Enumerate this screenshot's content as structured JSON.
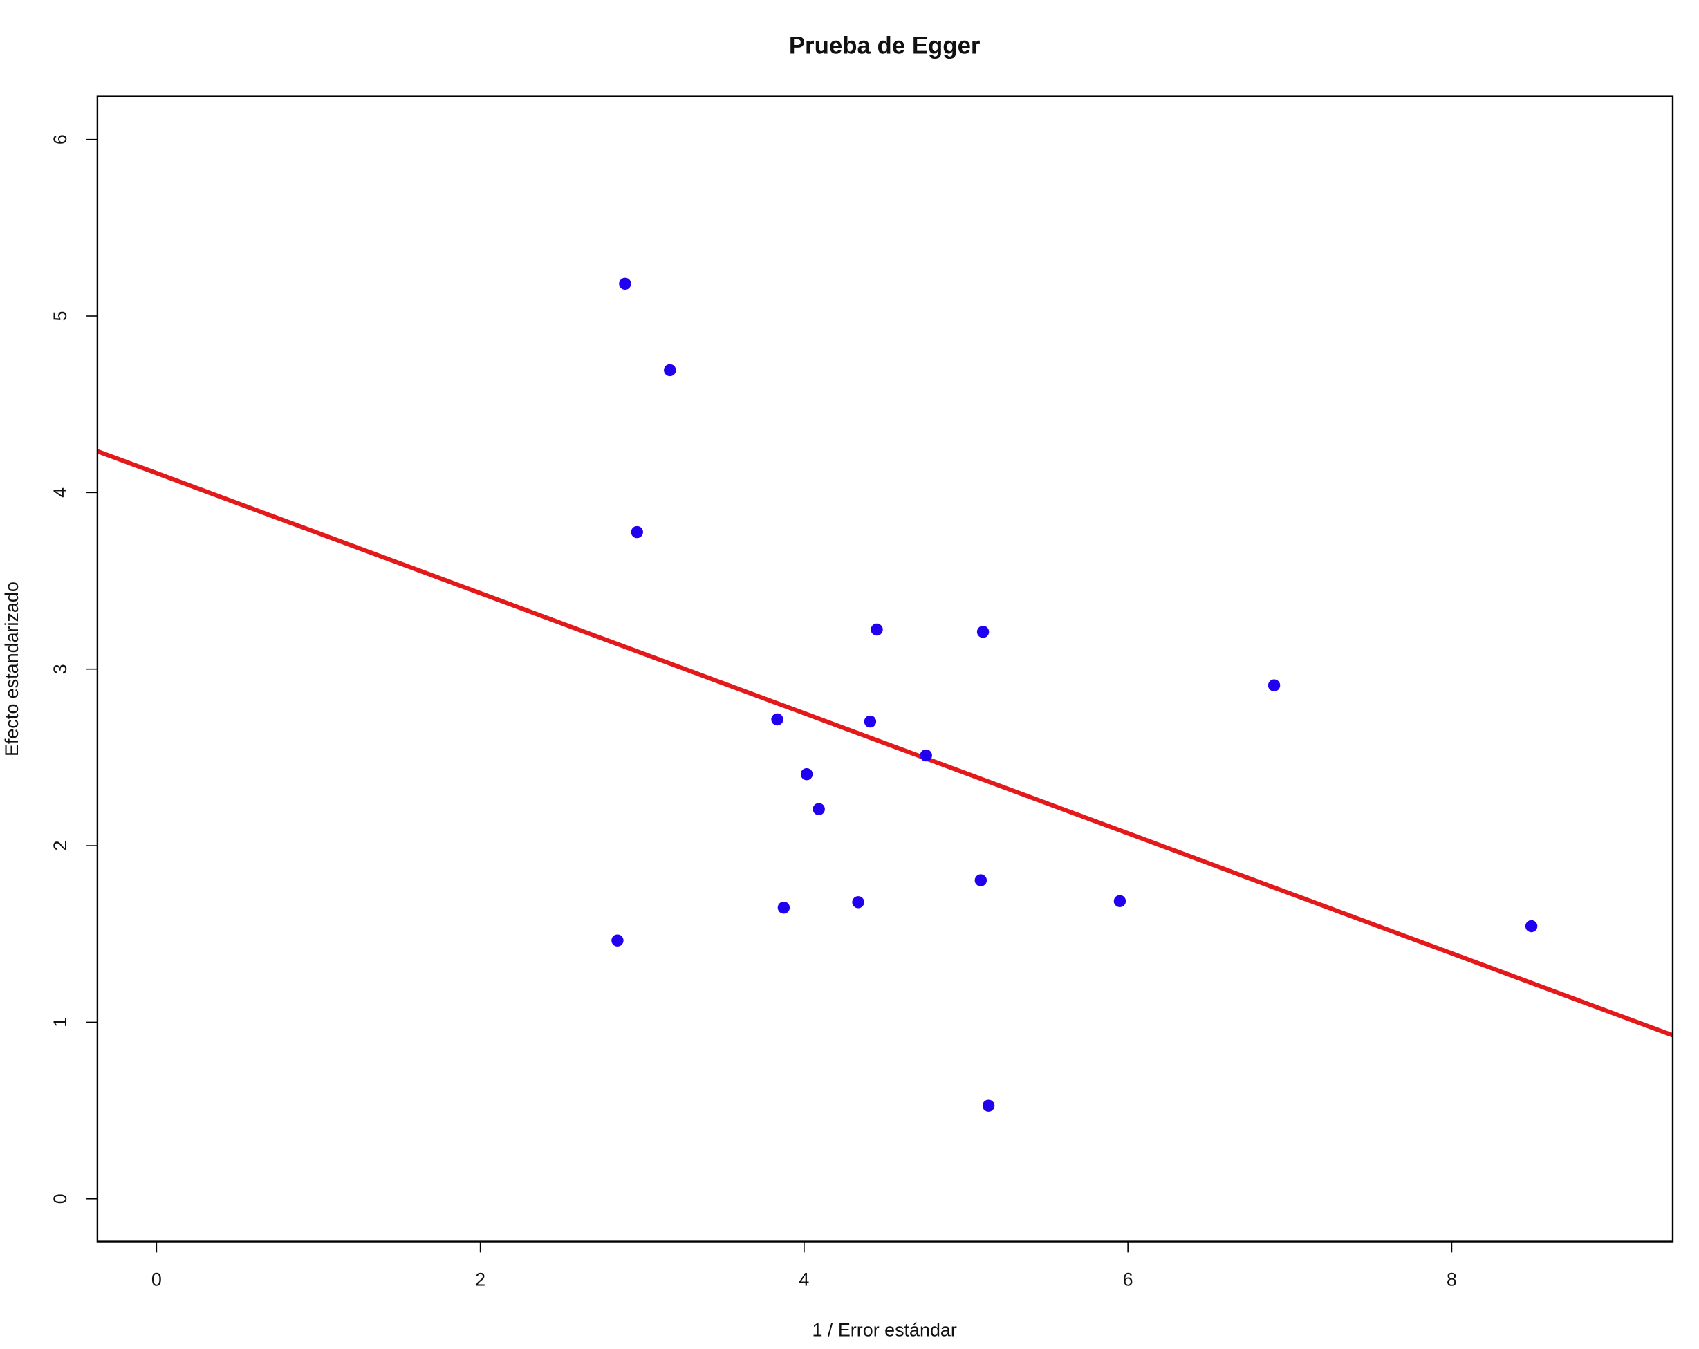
{
  "chart_data": {
    "type": "scatter",
    "title": "Prueba de Egger",
    "x_label": "1 / Error estándar",
    "y_label": "Efecto estandarizado",
    "x": [
      2.894,
      3.171,
      2.968,
      4.449,
      5.105,
      6.903,
      3.834,
      4.408,
      4.753,
      4.016,
      4.091,
      5.091,
      3.874,
      4.334,
      5.95,
      2.847,
      8.492,
      5.139
    ],
    "values": [
      5.183,
      4.693,
      3.776,
      3.224,
      3.211,
      2.908,
      2.715,
      2.703,
      2.511,
      2.405,
      2.207,
      1.804,
      1.649,
      1.68,
      1.686,
      1.463,
      1.544,
      0.527
    ],
    "color": "#2000ee",
    "regression_line": {
      "intercept": 4.11,
      "slope": -0.34,
      "color": "#e31a1c"
    },
    "xlim": [
      -0.365,
      9.365
    ],
    "ylim": [
      -0.242,
      6.243
    ],
    "xticks": [
      0,
      2,
      4,
      6,
      8
    ],
    "yticks": [
      0,
      1,
      2,
      3,
      4,
      5,
      6
    ]
  }
}
